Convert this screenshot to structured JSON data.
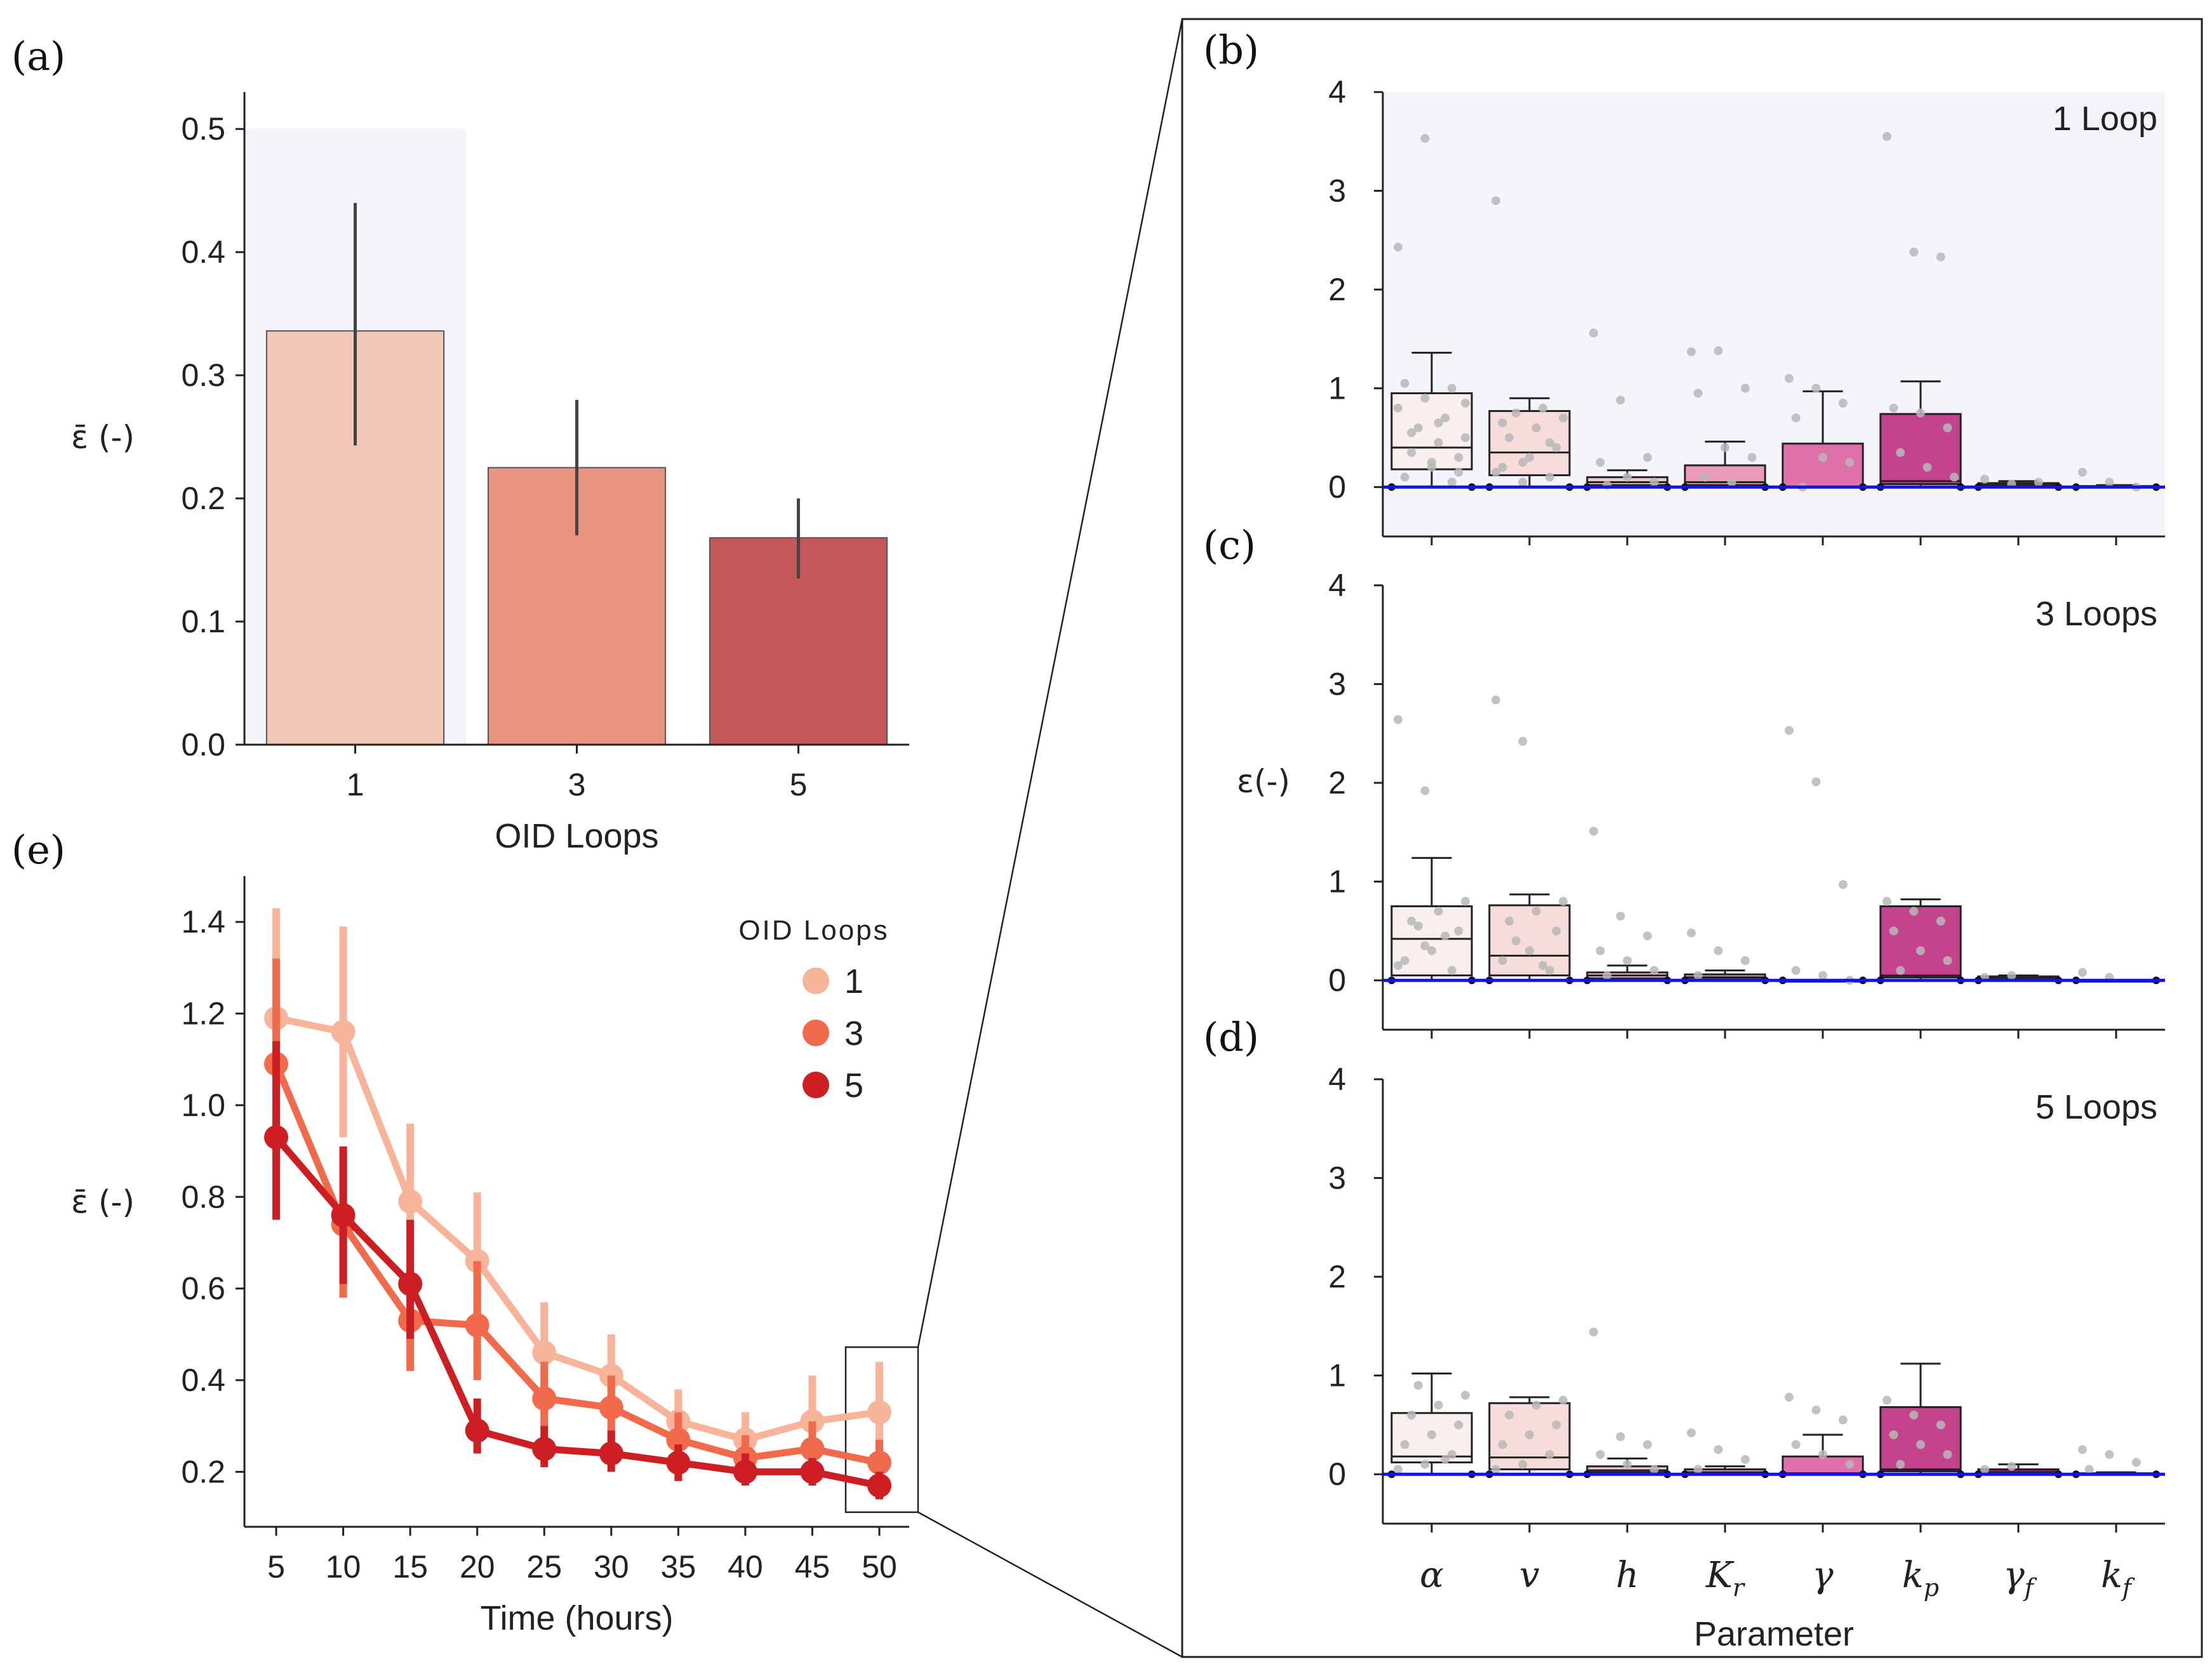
{
  "chart_data": [
    {
      "panel": "(a)",
      "type": "bar",
      "xlabel": "OID Loops",
      "ylabel": "ε̄ (-)",
      "categories": [
        "1",
        "3",
        "5"
      ],
      "values": [
        0.336,
        0.225,
        0.168
      ],
      "error_low": [
        0.243,
        0.17,
        0.135
      ],
      "error_high": [
        0.44,
        0.28,
        0.2
      ],
      "colors": [
        "#f2c9b8",
        "#e89280",
        "#c4575a"
      ],
      "ylim": [
        0,
        0.53
      ],
      "yticks": [
        "0.0",
        "0.1",
        "0.2",
        "0.3",
        "0.4",
        "0.5"
      ],
      "highlight_category": "1"
    },
    {
      "panel": "(b)",
      "type": "box",
      "annotation": "1 Loop",
      "ylim": [
        -0.5,
        4
      ],
      "yticks": [
        "0",
        "1",
        "2",
        "3",
        "4"
      ],
      "highlighted": true,
      "boxes": [
        {
          "q1": 0.18,
          "med": 0.4,
          "q3": 0.95,
          "wlo": 0.0,
          "whi": 1.36,
          "out": [
            2.43,
            3.53,
            0.05,
            0.1,
            0.2,
            0.3,
            0.35,
            0.45,
            0.5,
            0.6,
            0.7,
            0.8,
            0.9,
            1.0,
            1.05,
            0.25,
            0.15,
            0.55,
            0.65,
            0.85
          ]
        },
        {
          "q1": 0.12,
          "med": 0.35,
          "q3": 0.77,
          "wlo": 0.0,
          "whi": 0.9,
          "out": [
            2.9,
            0.05,
            0.1,
            0.2,
            0.3,
            0.4,
            0.5,
            0.6,
            0.7,
            0.75,
            0.8,
            0.15,
            0.25,
            0.45,
            0.65
          ]
        },
        {
          "q1": 0.02,
          "med": 0.05,
          "q3": 0.1,
          "wlo": 0.0,
          "whi": 0.17,
          "out": [
            1.56,
            0.88,
            0.3,
            0.25,
            0.1,
            0.05,
            0.02
          ]
        },
        {
          "q1": 0.02,
          "med": 0.05,
          "q3": 0.22,
          "wlo": 0.0,
          "whi": 0.46,
          "out": [
            1.37,
            1.38,
            1.0,
            0.95,
            0.4,
            0.3,
            0.1,
            0.05
          ]
        },
        {
          "q1": 0.0,
          "med": 0.0,
          "q3": 0.44,
          "wlo": 0.0,
          "whi": 0.97,
          "out": [
            1.1,
            1.0,
            0.85,
            0.7,
            0.3,
            0.25,
            0.0
          ]
        },
        {
          "q1": 0.03,
          "med": 0.06,
          "q3": 0.74,
          "wlo": 0.0,
          "whi": 1.07,
          "out": [
            3.55,
            2.38,
            2.33,
            0.8,
            0.75,
            0.6,
            0.35,
            0.2,
            0.1
          ]
        },
        {
          "q1": 0.01,
          "med": 0.02,
          "q3": 0.04,
          "wlo": 0.0,
          "whi": 0.06,
          "out": [
            0.08,
            0.03,
            0.05
          ]
        },
        {
          "q1": 0.0,
          "med": 0.0,
          "q3": 0.01,
          "wlo": 0.0,
          "whi": 0.02,
          "out": [
            0.15,
            0.05,
            0.0
          ]
        }
      ]
    },
    {
      "panel": "(c)",
      "type": "box",
      "annotation": "3 Loops",
      "ylabel": "ε(-)",
      "ylim": [
        -0.5,
        4
      ],
      "yticks": [
        "0",
        "1",
        "2",
        "3",
        "4"
      ],
      "boxes": [
        {
          "q1": 0.05,
          "med": 0.42,
          "q3": 0.75,
          "wlo": 0.0,
          "whi": 1.24,
          "out": [
            2.64,
            1.92,
            0.1,
            0.2,
            0.3,
            0.5,
            0.6,
            0.7,
            0.8,
            0.55,
            0.45,
            0.15,
            0.35
          ]
        },
        {
          "q1": 0.05,
          "med": 0.25,
          "q3": 0.76,
          "wlo": 0.0,
          "whi": 0.87,
          "out": [
            2.84,
            2.42,
            0.1,
            0.2,
            0.3,
            0.5,
            0.6,
            0.7,
            0.8,
            0.4,
            0.15
          ]
        },
        {
          "q1": 0.02,
          "med": 0.05,
          "q3": 0.08,
          "wlo": 0.0,
          "whi": 0.15,
          "out": [
            1.51,
            0.65,
            0.45,
            0.3,
            0.2,
            0.1,
            0.05
          ]
        },
        {
          "q1": 0.01,
          "med": 0.03,
          "q3": 0.06,
          "wlo": 0.0,
          "whi": 0.1,
          "out": [
            0.48,
            0.3,
            0.2,
            0.05
          ]
        },
        {
          "q1": 0.0,
          "med": 0.0,
          "q3": 0.0,
          "wlo": 0.0,
          "whi": 0.0,
          "out": [
            2.53,
            2.01,
            0.97,
            0.1,
            0.05,
            0.0
          ]
        },
        {
          "q1": 0.03,
          "med": 0.05,
          "q3": 0.75,
          "wlo": 0.0,
          "whi": 0.82,
          "out": [
            0.8,
            0.7,
            0.6,
            0.5,
            0.3,
            0.2,
            0.1
          ]
        },
        {
          "q1": 0.01,
          "med": 0.02,
          "q3": 0.04,
          "wlo": 0.0,
          "whi": 0.05,
          "out": [
            0.03,
            0.05
          ]
        },
        {
          "q1": 0.0,
          "med": 0.0,
          "q3": 0.0,
          "wlo": 0.0,
          "whi": 0.0,
          "out": [
            0.08,
            0.03
          ]
        }
      ]
    },
    {
      "panel": "(d)",
      "type": "box",
      "annotation": "5 Loops",
      "ylim": [
        -0.5,
        4
      ],
      "yticks": [
        "0",
        "1",
        "2",
        "3",
        "4"
      ],
      "xlabel": "Parameter",
      "boxes": [
        {
          "q1": 0.12,
          "med": 0.18,
          "q3": 0.62,
          "wlo": 0.0,
          "whi": 1.02,
          "out": [
            0.05,
            0.1,
            0.2,
            0.3,
            0.4,
            0.5,
            0.6,
            0.7,
            0.8,
            0.9,
            0.15
          ]
        },
        {
          "q1": 0.05,
          "med": 0.17,
          "q3": 0.72,
          "wlo": 0.0,
          "whi": 0.78,
          "out": [
            0.05,
            0.1,
            0.2,
            0.3,
            0.4,
            0.5,
            0.6,
            0.7,
            0.75
          ]
        },
        {
          "q1": 0.02,
          "med": 0.04,
          "q3": 0.08,
          "wlo": 0.0,
          "whi": 0.16,
          "out": [
            1.44,
            0.38,
            0.3,
            0.2,
            0.1,
            0.05
          ]
        },
        {
          "q1": 0.01,
          "med": 0.02,
          "q3": 0.05,
          "wlo": 0.0,
          "whi": 0.08,
          "out": [
            0.42,
            0.25,
            0.15,
            0.05
          ]
        },
        {
          "q1": 0.0,
          "med": 0.01,
          "q3": 0.18,
          "wlo": 0.0,
          "whi": 0.4,
          "out": [
            0.78,
            0.65,
            0.55,
            0.3,
            0.2,
            0.1
          ]
        },
        {
          "q1": 0.03,
          "med": 0.05,
          "q3": 0.68,
          "wlo": 0.0,
          "whi": 1.12,
          "out": [
            0.75,
            0.6,
            0.5,
            0.4,
            0.3,
            0.2,
            0.1
          ]
        },
        {
          "q1": 0.01,
          "med": 0.02,
          "q3": 0.05,
          "wlo": 0.0,
          "whi": 0.1,
          "out": [
            0.05,
            0.08
          ]
        },
        {
          "q1": 0.0,
          "med": 0.0,
          "q3": 0.01,
          "wlo": 0.0,
          "whi": 0.02,
          "out": [
            0.25,
            0.2,
            0.12,
            0.05
          ]
        }
      ]
    },
    {
      "panel": "(e)",
      "type": "line",
      "xlabel": "Time (hours)",
      "ylabel": "ε̄ (-)",
      "x": [
        5,
        10,
        15,
        20,
        25,
        30,
        35,
        40,
        45,
        50
      ],
      "ylim": [
        0.08,
        1.5
      ],
      "yticks": [
        "0.2",
        "0.4",
        "0.6",
        "0.8",
        "1.0",
        "1.2",
        "1.4"
      ],
      "legend_title": "OID Loops",
      "legend_position": "top-right",
      "series": [
        {
          "name": "1",
          "color": "#f7b49a",
          "values": [
            1.19,
            1.16,
            0.79,
            0.66,
            0.46,
            0.41,
            0.31,
            0.27,
            0.31,
            0.33
          ],
          "err_low": [
            0.95,
            0.93,
            0.62,
            0.52,
            0.37,
            0.33,
            0.25,
            0.22,
            0.24,
            0.25
          ],
          "err_high": [
            1.43,
            1.39,
            0.96,
            0.81,
            0.57,
            0.5,
            0.38,
            0.33,
            0.41,
            0.44
          ]
        },
        {
          "name": "3",
          "color": "#f06a4b",
          "values": [
            1.09,
            0.74,
            0.53,
            0.52,
            0.36,
            0.34,
            0.27,
            0.23,
            0.25,
            0.22
          ],
          "err_low": [
            0.87,
            0.58,
            0.42,
            0.4,
            0.29,
            0.27,
            0.21,
            0.19,
            0.2,
            0.18
          ],
          "err_high": [
            1.32,
            0.91,
            0.65,
            0.66,
            0.44,
            0.41,
            0.33,
            0.28,
            0.31,
            0.27
          ]
        },
        {
          "name": "5",
          "color": "#cc1e23",
          "values": [
            0.93,
            0.76,
            0.61,
            0.29,
            0.25,
            0.24,
            0.22,
            0.2,
            0.2,
            0.17
          ],
          "err_low": [
            0.75,
            0.61,
            0.49,
            0.24,
            0.21,
            0.2,
            0.18,
            0.17,
            0.17,
            0.14
          ],
          "err_high": [
            1.14,
            0.91,
            0.75,
            0.36,
            0.3,
            0.29,
            0.26,
            0.24,
            0.23,
            0.2
          ]
        }
      ]
    }
  ],
  "box_params": [
    {
      "base": "α",
      "sub": "",
      "fill": "#f8efee"
    },
    {
      "base": "v",
      "sub": "",
      "fill": "#f6dcdb"
    },
    {
      "base": "h",
      "sub": "",
      "fill": "#f3c8cc"
    },
    {
      "base": "K",
      "sub": "r",
      "fill": "#ec9bb7"
    },
    {
      "base": "γ",
      "sub": "",
      "fill": "#e070a9"
    },
    {
      "base": "k",
      "sub": "p",
      "fill": "#c3438c"
    },
    {
      "base": "γ",
      "sub": "f",
      "fill": "#9a1c6f"
    },
    {
      "base": "k",
      "sub": "f",
      "fill": "#6f0f5a"
    }
  ],
  "colors": {
    "highlight_bg": "#f4f5fa",
    "zero_line": "#1212ee",
    "dots": "#b7b7b7",
    "axis": "#222222"
  }
}
